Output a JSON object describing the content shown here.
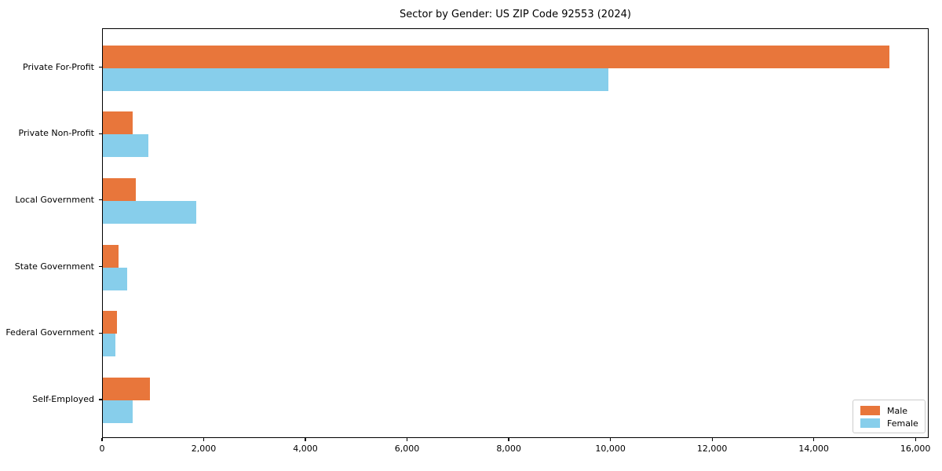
{
  "chart_data": {
    "type": "bar",
    "orientation": "horizontal",
    "title": "Sector by Gender: US ZIP Code 92553 (2024)",
    "categories": [
      "Private For-Profit",
      "Private Non-Profit",
      "Local Government",
      "State Government",
      "Federal Government",
      "Self-Employed"
    ],
    "series": [
      {
        "name": "Male",
        "color": "#e8763b",
        "values": [
          15480,
          580,
          655,
          315,
          285,
          930
        ]
      },
      {
        "name": "Female",
        "color": "#87ceeb",
        "values": [
          9940,
          900,
          1830,
          485,
          245,
          585
        ]
      }
    ],
    "xlim": [
      0,
      16260
    ],
    "x_ticks": [
      0,
      2000,
      4000,
      6000,
      8000,
      10000,
      12000,
      14000,
      16000
    ],
    "x_tick_labels": [
      "0",
      "2,000",
      "4,000",
      "6,000",
      "8,000",
      "10,000",
      "12,000",
      "14,000",
      "16,000"
    ],
    "ylabel": "",
    "xlabel": "",
    "grid": false,
    "legend_position": "lower right",
    "axis_color": "#000000",
    "background_color": "#ffffff"
  }
}
